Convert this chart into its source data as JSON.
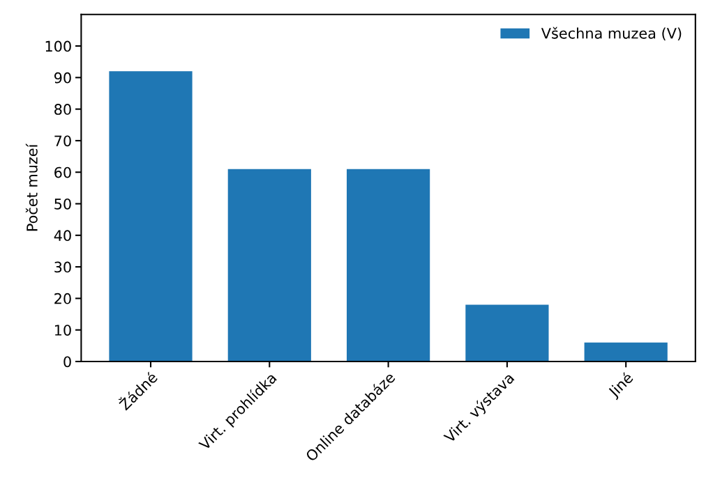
{
  "chart_data": {
    "type": "bar",
    "ylabel": "Počet muzeí",
    "categories": [
      "Žádné",
      "Virt. prohlídka",
      "Online databáze",
      "Virt. výstava",
      "Jiné"
    ],
    "series": [
      {
        "name": "Všechna muzea (V)",
        "color": "#1f77b4",
        "values": [
          92,
          61,
          61,
          18,
          6
        ]
      }
    ],
    "ylim": [
      0,
      110
    ],
    "yticks": [
      0,
      10,
      20,
      30,
      40,
      50,
      60,
      70,
      80,
      90,
      100
    ],
    "legend": "top right",
    "grid": false
  }
}
